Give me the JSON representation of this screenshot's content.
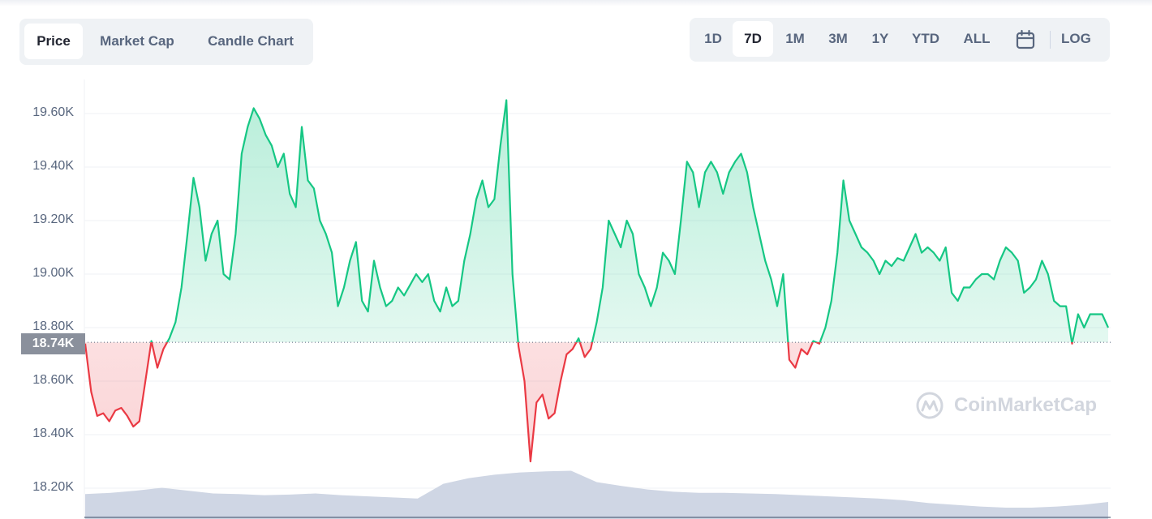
{
  "chart_tabs": [
    {
      "label": "Price",
      "active": true
    },
    {
      "label": "Market Cap",
      "active": false
    },
    {
      "label": "Candle Chart",
      "active": false
    }
  ],
  "range_tabs": [
    {
      "label": "1D",
      "active": false
    },
    {
      "label": "7D",
      "active": true
    },
    {
      "label": "1M",
      "active": false
    },
    {
      "label": "3M",
      "active": false
    },
    {
      "label": "1Y",
      "active": false
    },
    {
      "label": "YTD",
      "active": false
    },
    {
      "label": "ALL",
      "active": false
    }
  ],
  "calendar_icon": "calendar-icon",
  "log_label": "LOG",
  "watermark": "CoinMarketCap",
  "colors": {
    "up": "#16c784",
    "down": "#ea3943",
    "volume": "#cfd6e4",
    "grid": "#eff2f5",
    "baseline": "#58667e"
  },
  "chart_data": {
    "type": "area",
    "title": "",
    "xlabel": "",
    "ylabel": "",
    "ylim": [
      18150,
      19780
    ],
    "yticks": [
      18200,
      18400,
      18600,
      18800,
      19000,
      19200,
      19400,
      19600
    ],
    "ytick_labels": [
      "18.20K",
      "18.40K",
      "18.60K",
      "18.80K",
      "19.00K",
      "19.20K",
      "19.40K",
      "19.60K"
    ],
    "baseline": {
      "value": 18745,
      "label": "18.74K"
    },
    "series": [
      {
        "values": [
          18740,
          18560,
          18470,
          18480,
          18450,
          18490,
          18500,
          18470,
          18430,
          18450,
          18600,
          18750,
          18650,
          18720,
          18760,
          18820,
          18950,
          19150,
          19360,
          19250,
          19050,
          19150,
          19200,
          19000,
          18980,
          19150,
          19450,
          19550,
          19620,
          19580,
          19520,
          19480,
          19400,
          19450,
          19300,
          19250,
          19550,
          19350,
          19320,
          19200,
          19150,
          19080,
          18880,
          18950,
          19050,
          19120,
          18900,
          18860,
          19050,
          18950,
          18880,
          18900,
          18950,
          18920,
          18960,
          19000,
          18970,
          19000,
          18900,
          18860,
          18950,
          18880,
          18900,
          19050,
          19150,
          19280,
          19350,
          19250,
          19280,
          19480,
          19650,
          19000,
          18730,
          18600,
          18300,
          18520,
          18550,
          18460,
          18480,
          18600,
          18700,
          18720,
          18760,
          18690,
          18720,
          18820,
          18950,
          19200,
          19150,
          19100,
          19200,
          19150,
          19000,
          18950,
          18880,
          18950,
          19080,
          19050,
          19000,
          19200,
          19420,
          19380,
          19250,
          19380,
          19420,
          19380,
          19300,
          19380,
          19420,
          19450,
          19380,
          19250,
          19150,
          19050,
          18980,
          18880,
          19000,
          18680,
          18650,
          18720,
          18700,
          18750,
          18740,
          18800,
          18900,
          19080,
          19350,
          19200,
          19150,
          19100,
          19080,
          19050,
          19000,
          19050,
          19030,
          19060,
          19050,
          19100,
          19150,
          19080,
          19100,
          19080,
          19050,
          19100,
          18930,
          18900,
          18950,
          18950,
          18980,
          19000,
          19000,
          18980,
          19050,
          19100,
          19080,
          19050,
          18930,
          18950,
          18980,
          19050,
          19000,
          18900,
          18880,
          18880,
          18740,
          18850,
          18800,
          18850,
          18850,
          18850,
          18800
        ]
      }
    ],
    "volume": {
      "values": [
        0.44,
        0.46,
        0.5,
        0.55,
        0.5,
        0.45,
        0.44,
        0.42,
        0.43,
        0.45,
        0.42,
        0.4,
        0.38,
        0.36,
        0.62,
        0.72,
        0.78,
        0.82,
        0.84,
        0.85,
        0.65,
        0.58,
        0.52,
        0.48,
        0.46,
        0.46,
        0.45,
        0.44,
        0.42,
        0.4,
        0.38,
        0.36,
        0.33,
        0.28,
        0.25,
        0.22,
        0.2,
        0.2,
        0.22,
        0.25,
        0.3
      ]
    }
  }
}
